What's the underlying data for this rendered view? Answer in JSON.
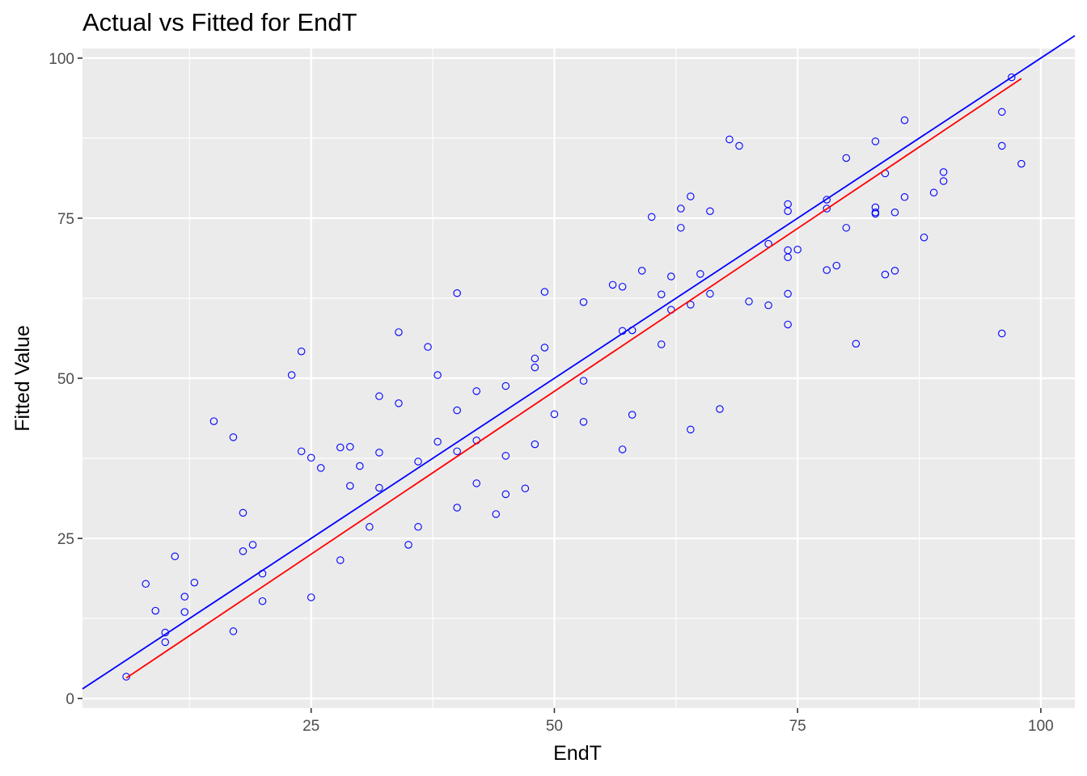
{
  "chart_data": {
    "type": "scatter",
    "title": "Actual vs Fitted for EndT",
    "xlabel": "EndT",
    "ylabel": "Fitted Value",
    "xlim": [
      1.5,
      103.5
    ],
    "ylim": [
      -1.5,
      101.5
    ],
    "x_ticks": [
      25,
      50,
      75,
      100
    ],
    "y_ticks": [
      0,
      25,
      50,
      75,
      100
    ],
    "x_tick_labels": [
      "25",
      "50",
      "75",
      "100"
    ],
    "y_tick_labels": [
      "0",
      "25",
      "50",
      "75",
      "100"
    ],
    "grid": true,
    "background": "#EBEBEB",
    "point_color": "#0000FF",
    "identity_line": {
      "color": "#0000FF",
      "slope": 1,
      "intercept": 0
    },
    "fit_line": {
      "color": "#FF0000",
      "x": [
        6,
        98
      ],
      "y": [
        3.2,
        96.8
      ]
    },
    "points": [
      [
        6,
        3.4
      ],
      [
        8,
        17.9
      ],
      [
        9,
        13.7
      ],
      [
        10,
        10.3
      ],
      [
        10,
        8.8
      ],
      [
        11,
        22.2
      ],
      [
        12,
        15.9
      ],
      [
        12,
        13.5
      ],
      [
        13,
        18.1
      ],
      [
        15,
        43.3
      ],
      [
        17,
        40.8
      ],
      [
        17,
        10.5
      ],
      [
        18,
        29.0
      ],
      [
        18,
        23.0
      ],
      [
        19,
        24.0
      ],
      [
        20,
        19.5
      ],
      [
        20,
        15.2
      ],
      [
        23,
        50.5
      ],
      [
        24,
        54.2
      ],
      [
        24,
        38.6
      ],
      [
        25,
        37.6
      ],
      [
        25,
        15.8
      ],
      [
        26,
        36.0
      ],
      [
        28,
        39.2
      ],
      [
        28,
        21.6
      ],
      [
        29,
        39.3
      ],
      [
        29,
        33.2
      ],
      [
        30,
        36.3
      ],
      [
        31,
        26.8
      ],
      [
        32,
        47.2
      ],
      [
        32,
        38.4
      ],
      [
        32,
        32.9
      ],
      [
        34,
        57.2
      ],
      [
        34,
        46.1
      ],
      [
        35,
        24.0
      ],
      [
        36,
        37.0
      ],
      [
        36,
        26.8
      ],
      [
        37,
        54.9
      ],
      [
        38,
        50.5
      ],
      [
        38,
        40.1
      ],
      [
        40,
        63.3
      ],
      [
        40,
        45.0
      ],
      [
        40,
        38.6
      ],
      [
        40,
        29.8
      ],
      [
        42,
        48.0
      ],
      [
        42,
        40.3
      ],
      [
        42,
        33.6
      ],
      [
        44,
        28.8
      ],
      [
        45,
        48.8
      ],
      [
        45,
        37.9
      ],
      [
        45,
        31.9
      ],
      [
        47,
        32.8
      ],
      [
        48,
        53.1
      ],
      [
        48,
        51.7
      ],
      [
        48,
        39.7
      ],
      [
        49,
        63.5
      ],
      [
        49,
        54.8
      ],
      [
        50,
        44.4
      ],
      [
        53,
        61.9
      ],
      [
        53,
        49.6
      ],
      [
        53,
        43.2
      ],
      [
        56,
        64.6
      ],
      [
        57,
        64.3
      ],
      [
        57,
        57.4
      ],
      [
        57,
        38.9
      ],
      [
        58,
        57.5
      ],
      [
        58,
        44.3
      ],
      [
        59,
        66.8
      ],
      [
        60,
        75.2
      ],
      [
        61,
        63.1
      ],
      [
        61,
        55.3
      ],
      [
        62,
        65.9
      ],
      [
        62,
        60.7
      ],
      [
        63,
        76.5
      ],
      [
        63,
        73.5
      ],
      [
        64,
        78.4
      ],
      [
        64,
        61.5
      ],
      [
        64,
        42.0
      ],
      [
        65,
        66.3
      ],
      [
        66,
        76.1
      ],
      [
        66,
        63.2
      ],
      [
        67,
        45.2
      ],
      [
        68,
        87.3
      ],
      [
        69,
        86.3
      ],
      [
        70,
        62.0
      ],
      [
        72,
        71.0
      ],
      [
        72,
        61.4
      ],
      [
        74,
        77.2
      ],
      [
        74,
        76.1
      ],
      [
        74,
        70.0
      ],
      [
        74,
        68.9
      ],
      [
        74,
        63.2
      ],
      [
        74,
        58.4
      ],
      [
        75,
        70.1
      ],
      [
        78,
        77.9
      ],
      [
        78,
        76.5
      ],
      [
        78,
        66.9
      ],
      [
        79,
        67.6
      ],
      [
        80,
        84.4
      ],
      [
        80,
        73.5
      ],
      [
        81,
        55.4
      ],
      [
        83,
        87.0
      ],
      [
        83,
        76.7
      ],
      [
        83,
        75.9
      ],
      [
        83,
        75.7
      ],
      [
        84,
        82.0
      ],
      [
        84,
        66.2
      ],
      [
        85,
        75.9
      ],
      [
        85,
        66.8
      ],
      [
        86,
        90.3
      ],
      [
        86,
        78.3
      ],
      [
        88,
        72.0
      ],
      [
        89,
        79.0
      ],
      [
        90,
        82.2
      ],
      [
        90,
        80.8
      ],
      [
        96,
        91.6
      ],
      [
        96,
        86.3
      ],
      [
        96,
        57.0
      ],
      [
        97,
        97.0
      ],
      [
        98,
        83.5
      ]
    ]
  }
}
